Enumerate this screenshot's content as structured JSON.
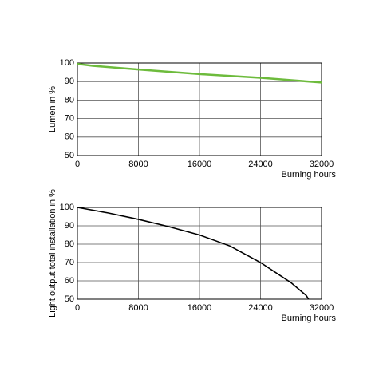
{
  "chart_data": [
    {
      "type": "line",
      "y_label": "Lumen in %",
      "x_label": "Burning hours",
      "x": [
        0,
        2000,
        8000,
        16000,
        24000,
        32000
      ],
      "values": [
        99.5,
        98.5,
        96.5,
        94,
        92,
        89.5
      ],
      "color": "#6dbb3c",
      "xlim": [
        0,
        32000
      ],
      "ylim": [
        50,
        100
      ],
      "xticks": [
        0,
        8000,
        16000,
        24000,
        32000
      ],
      "yticks": [
        50,
        60,
        70,
        80,
        90,
        100
      ],
      "grid": true
    },
    {
      "type": "line",
      "y_label": "Light output total installation in %",
      "x_label": "Burning hours",
      "x": [
        0,
        4000,
        8000,
        12000,
        16000,
        20000,
        24000,
        28000,
        30000,
        30300
      ],
      "values": [
        100,
        97,
        93.5,
        89.5,
        85,
        79,
        70,
        59,
        52,
        50
      ],
      "color": "#000000",
      "xlim": [
        0,
        32000
      ],
      "ylim": [
        50,
        100
      ],
      "xticks": [
        0,
        8000,
        16000,
        24000,
        32000
      ],
      "yticks": [
        50,
        60,
        70,
        80,
        90,
        100
      ],
      "grid": true
    }
  ]
}
